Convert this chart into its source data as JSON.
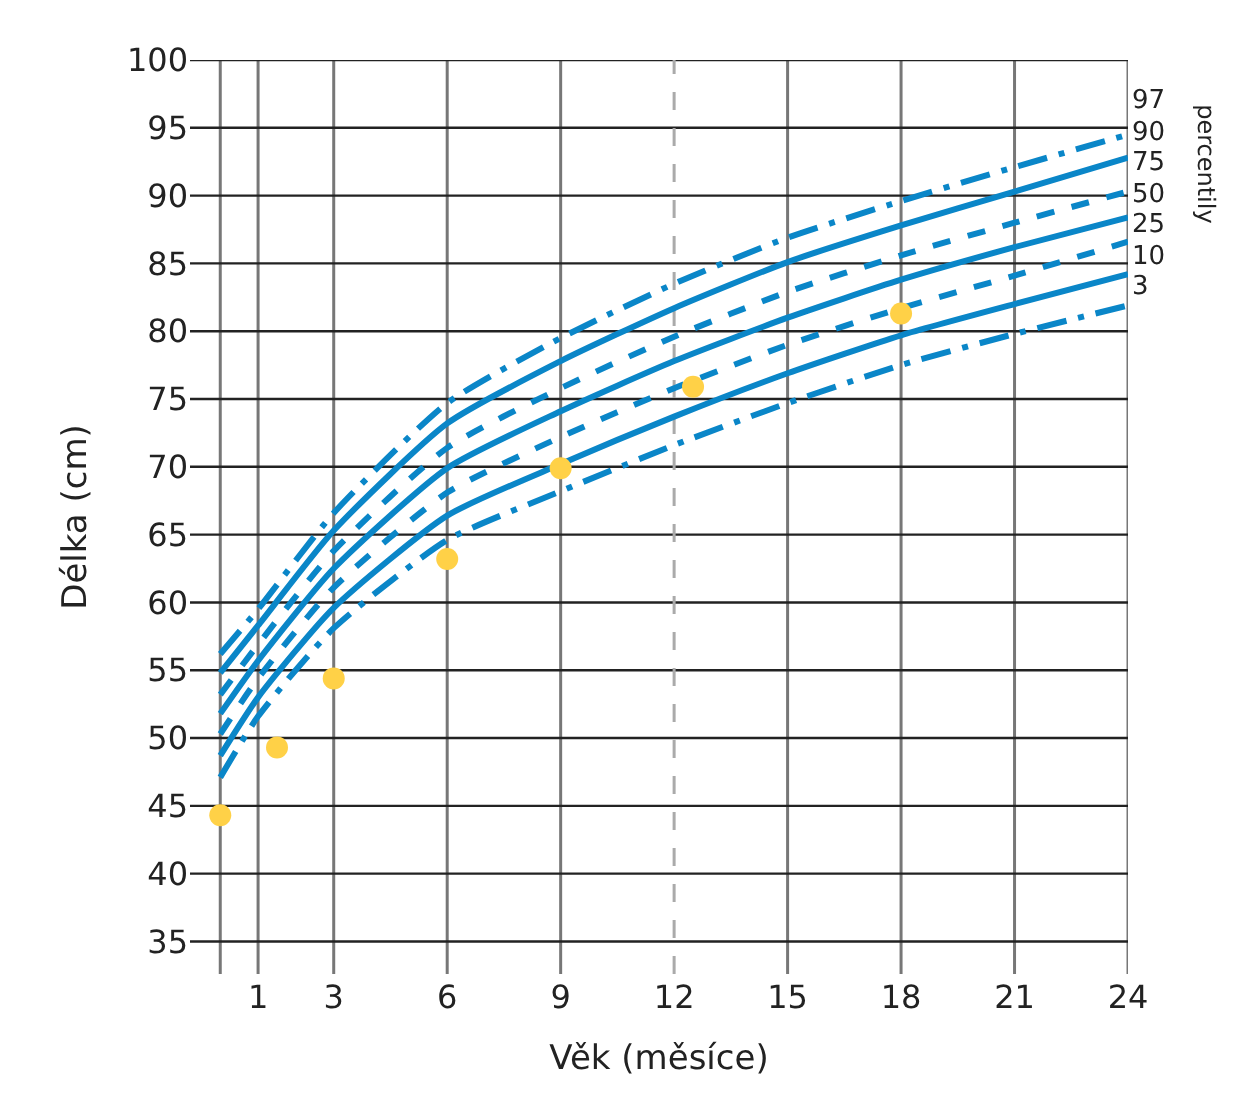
{
  "chart_data": {
    "type": "line",
    "xlabel": "Věk (měsíce)",
    "ylabel": "Délka (cm)",
    "legend_title": "percentily",
    "x": [
      0,
      1,
      3,
      6,
      9,
      12,
      15,
      18,
      21,
      24
    ],
    "xlim": [
      -0.8,
      24
    ],
    "xticks": [
      {
        "value": 0,
        "label": null
      },
      1,
      3,
      6,
      9,
      12,
      15,
      18,
      21,
      24
    ],
    "ylim": [
      32.6,
      100
    ],
    "yticks": [
      35,
      40,
      45,
      50,
      55,
      60,
      65,
      70,
      75,
      80,
      85,
      90,
      95,
      100
    ],
    "grid": true,
    "legend": false,
    "marker": "none",
    "ref_lines": [
      {
        "axis": "x",
        "value": 12,
        "label": null,
        "color": "#aaaaaa",
        "line_style": "dashed"
      }
    ],
    "series": [
      {
        "name": "97",
        "color": "#0a86c8",
        "line_style": "dashdot",
        "values": [
          56.2,
          59.5,
          66.6,
          74.7,
          79.5,
          83.5,
          86.9,
          89.6,
          92.1,
          94.5
        ]
      },
      {
        "name": "90",
        "color": "#0a86c8",
        "line_style": "solid",
        "values": [
          54.8,
          58.3,
          65.3,
          73.2,
          77.8,
          81.7,
          85.1,
          87.8,
          90.3,
          92.8
        ]
      },
      {
        "name": "75",
        "color": "#0a86c8",
        "line_style": "dashed",
        "values": [
          53.2,
          56.9,
          63.8,
          71.4,
          75.8,
          79.6,
          82.9,
          85.6,
          88.0,
          90.3
        ]
      },
      {
        "name": "50",
        "color": "#0a86c8",
        "line_style": "solid",
        "values": [
          51.8,
          55.7,
          62.5,
          69.9,
          74.1,
          77.8,
          81.0,
          83.8,
          86.2,
          88.4
        ]
      },
      {
        "name": "25",
        "color": "#0a86c8",
        "line_style": "dashed",
        "values": [
          50.3,
          54.4,
          61.1,
          68.1,
          72.2,
          75.8,
          79.0,
          81.7,
          84.1,
          86.6
        ]
      },
      {
        "name": "10",
        "color": "#0a86c8",
        "line_style": "solid",
        "values": [
          48.7,
          53.0,
          59.6,
          66.4,
          70.2,
          73.7,
          76.9,
          79.7,
          82.0,
          84.2
        ]
      },
      {
        "name": "3",
        "color": "#0a86c8",
        "line_style": "dashdot",
        "values": [
          47.1,
          51.6,
          58.1,
          64.6,
          68.2,
          71.6,
          74.7,
          77.5,
          79.8,
          81.9
        ]
      },
      {
        "type": "scatter",
        "marker": "circle",
        "color": "#ffd147",
        "x": [
          0,
          1.5,
          3,
          6,
          9,
          12.5,
          18
        ],
        "values": [
          44.3,
          49.3,
          54.4,
          63.2,
          69.9,
          75.9,
          81.3
        ]
      }
    ]
  }
}
